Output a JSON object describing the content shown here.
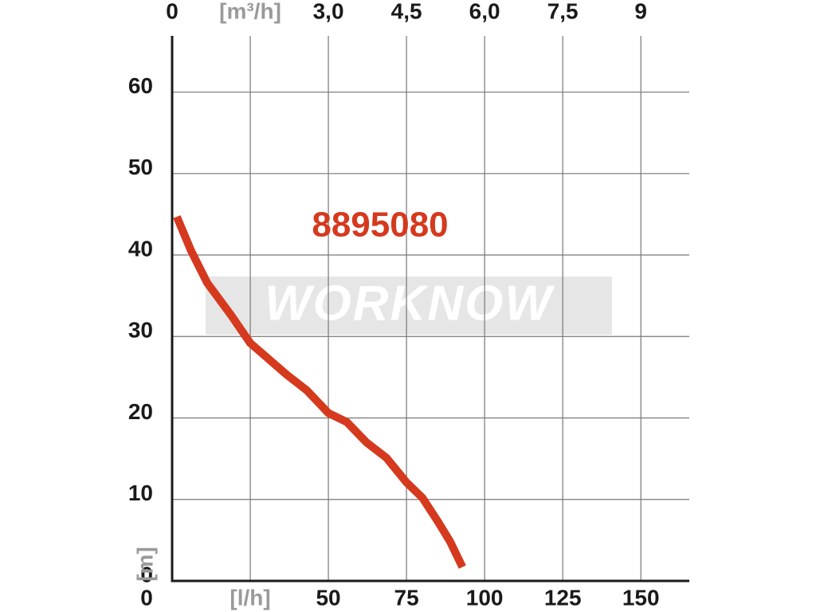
{
  "chart_data": {
    "type": "line",
    "watermark": "WORKNOW",
    "x": [
      1.5,
      6.1,
      11.2,
      18.9,
      25,
      36.7,
      43.1,
      50,
      55.9,
      62.2,
      68.6,
      75,
      80.1,
      85.2,
      89,
      92.9
    ],
    "series": [
      {
        "name": "8895080",
        "color": "#d5391e",
        "values": [
          44.7,
          40.5,
          36.6,
          32.6,
          29.2,
          25.3,
          23.4,
          20.6,
          19.5,
          17.0,
          15.1,
          12.1,
          10.2,
          7.2,
          4.8,
          1.7
        ]
      }
    ],
    "xlim": [
      0,
      165.5
    ],
    "xticks": [
      0,
      {
        "value": 25,
        "label": "[l/h]"
      },
      50,
      75,
      100,
      125,
      150
    ],
    "x2lim": [
      0,
      9.93
    ],
    "x2ticks": [
      0,
      {
        "value": 1.5,
        "label": "[m³/h]"
      },
      {
        "value": 3,
        "label": "3,0"
      },
      {
        "value": 4.5,
        "label": "4,5"
      },
      {
        "value": 6,
        "label": "6,0"
      },
      {
        "value": 7.5,
        "label": "7,5"
      },
      9
    ],
    "ylim": [
      0,
      66.9
    ],
    "yticks": [
      0,
      10,
      20,
      30,
      40,
      50,
      60
    ],
    "y_label": "[m]",
    "grid": true
  }
}
